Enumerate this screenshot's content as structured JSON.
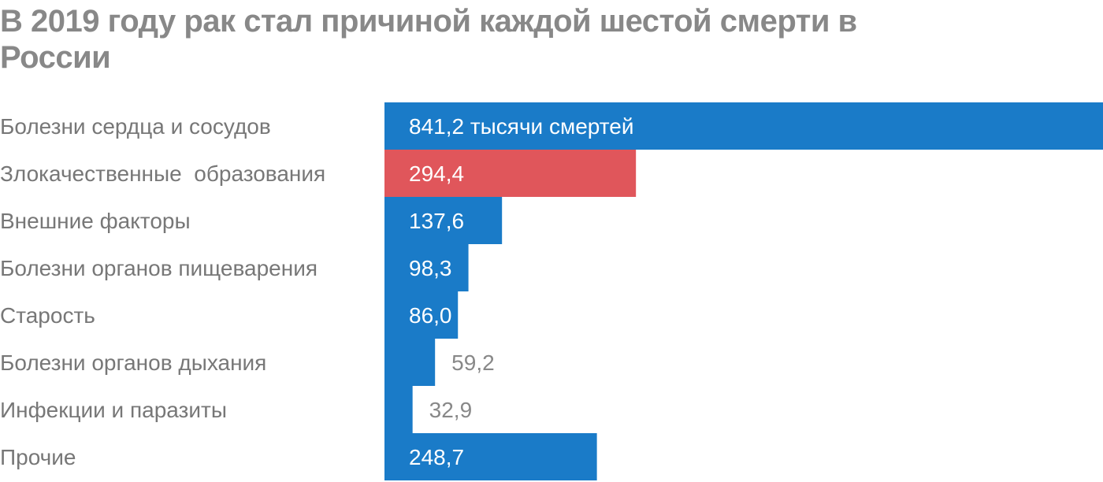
{
  "chart_data": {
    "type": "bar",
    "orientation": "horizontal",
    "title": "В 2019 году рак стал причиной каждой шестой смерти в России",
    "unit_label": "тысячи смертей",
    "categories": [
      "Болезни сердца и сосудов",
      "Злокачественные  образования",
      "Внешние факторы",
      "Болезни органов пищеварения",
      "Старость",
      "Болезни органов дыхания",
      "Инфекции и паразиты",
      "Прочие"
    ],
    "values": [
      841.2,
      294.4,
      137.6,
      98.3,
      86.0,
      59.2,
      32.9,
      248.7
    ],
    "value_labels": [
      "841,2 тысячи смертей",
      "294,4",
      "137,6",
      "98,3",
      "86,0",
      "59,2",
      "32,9",
      "248,7"
    ],
    "highlight_index": 1,
    "colors": {
      "default": "#1a7bc8",
      "highlight": "#e0565b"
    },
    "xlim": [
      0,
      841.2
    ],
    "grid": false,
    "legend": "none"
  }
}
